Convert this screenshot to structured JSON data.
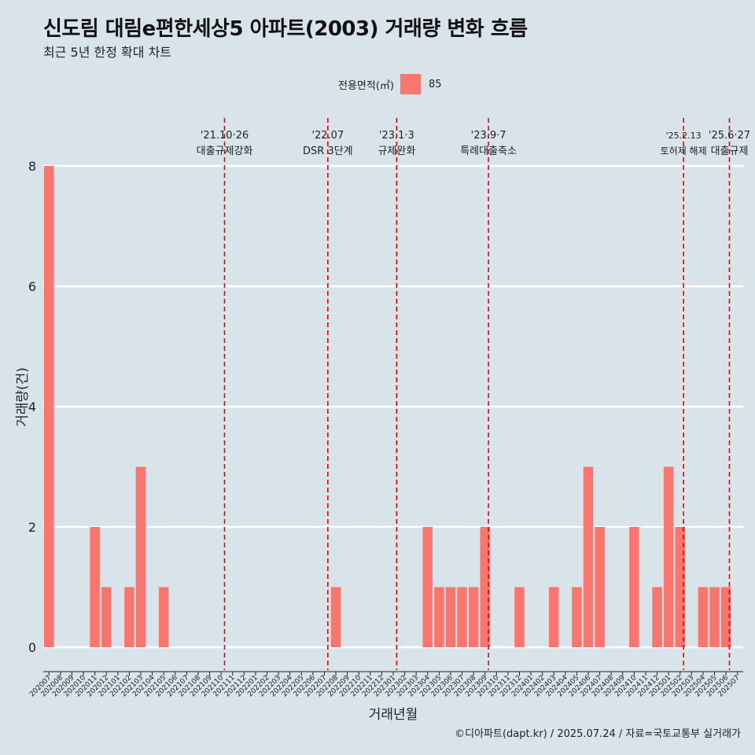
{
  "title": "신도림 대림e편한세상5 아파트(2003) 거래량 변화 흐름",
  "subtitle": "최근 5년 한정 확대 차트",
  "legend": {
    "title": "전용면적(㎡)",
    "item": "85"
  },
  "caption": "©디아파트(dapt.kr) / 2025.07.24 / 자료=국토교통부 실거래가",
  "colors": {
    "bar": "#f8766d",
    "event": "#ee0000",
    "background": "#d8e4ea",
    "grid": "#ffffff"
  },
  "chart_data": {
    "type": "bar",
    "title": "신도림 대림e편한세상5 아파트(2003) 거래량 변화 흐름",
    "xlabel": "거래년월",
    "ylabel": "거래량(건)",
    "ylim": [
      0,
      8
    ],
    "yticks": [
      0,
      2,
      4,
      6,
      8
    ],
    "categories": [
      "202007",
      "202008",
      "202009",
      "202010",
      "202011",
      "202012",
      "202101",
      "202102",
      "202103",
      "202104",
      "202105",
      "202106",
      "202107",
      "202108",
      "202109",
      "202110",
      "202111",
      "202112",
      "202201",
      "202202",
      "202203",
      "202204",
      "202205",
      "202206",
      "202207",
      "202208",
      "202209",
      "202210",
      "202211",
      "202212",
      "202301",
      "202302",
      "202303",
      "202304",
      "202305",
      "202306",
      "202307",
      "202308",
      "202309",
      "202310",
      "202311",
      "202312",
      "202401",
      "202402",
      "202403",
      "202404",
      "202405",
      "202406",
      "202407",
      "202408",
      "202409",
      "202410",
      "202411",
      "202412",
      "202501",
      "202502",
      "202503",
      "202504",
      "202505",
      "202506",
      "202507"
    ],
    "series": [
      {
        "name": "85",
        "values": [
          8,
          0,
          0,
          0,
          2,
          1,
          0,
          1,
          3,
          0,
          1,
          0,
          0,
          0,
          0,
          0,
          0,
          0,
          0,
          0,
          0,
          0,
          0,
          0,
          0,
          1,
          0,
          0,
          0,
          0,
          0,
          0,
          0,
          2,
          1,
          1,
          1,
          1,
          2,
          0,
          0,
          1,
          0,
          0,
          1,
          0,
          1,
          3,
          2,
          0,
          0,
          2,
          0,
          1,
          3,
          2,
          0,
          1,
          1,
          1,
          0
        ]
      }
    ],
    "events": [
      {
        "date": "'21.10·26",
        "label": "대출규제강화",
        "position": 15.3
      },
      {
        "date": "'22.07",
        "label": "DSR 3단계",
        "position": 24.3
      },
      {
        "date": "'23.1·3",
        "label": "규제완화",
        "position": 30.3
      },
      {
        "date": "'23.9·7",
        "label": "특례대출축소",
        "position": 38.3
      },
      {
        "date": "'25.2.13",
        "label": "토허제 해제",
        "position": 55.3
      },
      {
        "date": "'25.6·27",
        "label": "대출규제",
        "position": 59.3
      }
    ]
  }
}
